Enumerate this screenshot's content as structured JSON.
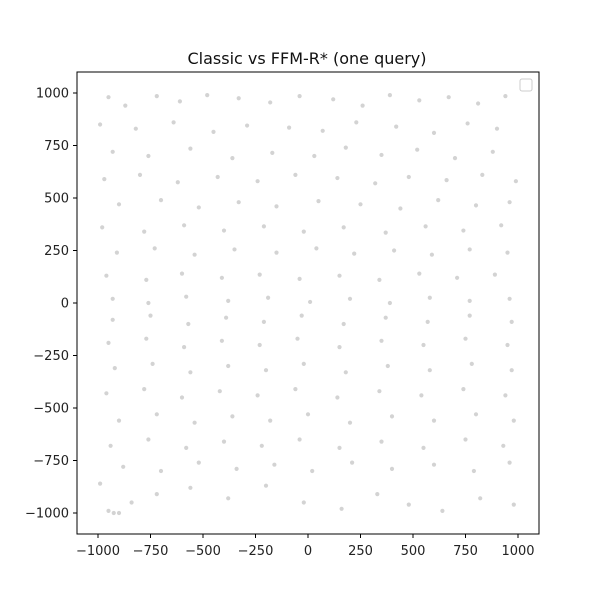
{
  "chart_data": {
    "type": "scatter",
    "title": "Classic vs FFM-R* (one query)",
    "xlabel": "",
    "ylabel": "",
    "xlim": [
      -1100,
      1100
    ],
    "ylim": [
      -1100,
      1100
    ],
    "xticks": [
      -1000,
      -750,
      -500,
      -250,
      0,
      250,
      500,
      750,
      1000
    ],
    "yticks": [
      -1000,
      -750,
      -500,
      -250,
      0,
      250,
      500,
      750,
      1000
    ],
    "xtick_labels": [
      "−1000",
      "−750",
      "−500",
      "−250",
      "0",
      "250",
      "500",
      "750",
      "1000"
    ],
    "ytick_labels": [
      "−1000",
      "−750",
      "−500",
      "−250",
      "0",
      "250",
      "500",
      "750",
      "1000"
    ],
    "grid": false,
    "legend": {
      "placement": "top-right",
      "entries": []
    },
    "point_color": "#d3d3d3",
    "series": [
      {
        "name": "",
        "points": [
          [
            -950,
            980
          ],
          [
            -870,
            940
          ],
          [
            -720,
            985
          ],
          [
            -610,
            960
          ],
          [
            -480,
            990
          ],
          [
            -330,
            975
          ],
          [
            -180,
            955
          ],
          [
            -40,
            985
          ],
          [
            120,
            970
          ],
          [
            260,
            940
          ],
          [
            390,
            990
          ],
          [
            530,
            965
          ],
          [
            670,
            980
          ],
          [
            810,
            950
          ],
          [
            940,
            985
          ],
          [
            -990,
            850
          ],
          [
            -820,
            830
          ],
          [
            -640,
            860
          ],
          [
            -450,
            815
          ],
          [
            -290,
            845
          ],
          [
            -90,
            835
          ],
          [
            70,
            820
          ],
          [
            230,
            860
          ],
          [
            420,
            840
          ],
          [
            600,
            810
          ],
          [
            760,
            855
          ],
          [
            900,
            830
          ],
          [
            -930,
            720
          ],
          [
            -760,
            700
          ],
          [
            -560,
            735
          ],
          [
            -360,
            690
          ],
          [
            -170,
            715
          ],
          [
            30,
            700
          ],
          [
            180,
            740
          ],
          [
            350,
            705
          ],
          [
            520,
            730
          ],
          [
            700,
            690
          ],
          [
            880,
            720
          ],
          [
            -970,
            590
          ],
          [
            -800,
            610
          ],
          [
            -620,
            575
          ],
          [
            -430,
            600
          ],
          [
            -240,
            580
          ],
          [
            -60,
            610
          ],
          [
            140,
            595
          ],
          [
            320,
            570
          ],
          [
            480,
            600
          ],
          [
            660,
            585
          ],
          [
            830,
            610
          ],
          [
            990,
            580
          ],
          [
            -900,
            470
          ],
          [
            -700,
            490
          ],
          [
            -520,
            455
          ],
          [
            -330,
            480
          ],
          [
            -150,
            460
          ],
          [
            50,
            485
          ],
          [
            250,
            470
          ],
          [
            440,
            450
          ],
          [
            620,
            490
          ],
          [
            800,
            465
          ],
          [
            960,
            480
          ],
          [
            -980,
            360
          ],
          [
            -780,
            340
          ],
          [
            -590,
            370
          ],
          [
            -400,
            345
          ],
          [
            -210,
            365
          ],
          [
            -20,
            340
          ],
          [
            170,
            360
          ],
          [
            370,
            335
          ],
          [
            560,
            365
          ],
          [
            740,
            345
          ],
          [
            920,
            370
          ],
          [
            -910,
            240
          ],
          [
            -730,
            260
          ],
          [
            -540,
            230
          ],
          [
            -350,
            255
          ],
          [
            -150,
            240
          ],
          [
            40,
            260
          ],
          [
            220,
            235
          ],
          [
            410,
            250
          ],
          [
            590,
            230
          ],
          [
            770,
            255
          ],
          [
            950,
            240
          ],
          [
            -960,
            130
          ],
          [
            -770,
            110
          ],
          [
            -600,
            140
          ],
          [
            -410,
            120
          ],
          [
            -230,
            135
          ],
          [
            -40,
            115
          ],
          [
            150,
            130
          ],
          [
            340,
            110
          ],
          [
            530,
            140
          ],
          [
            710,
            120
          ],
          [
            890,
            135
          ],
          [
            -930,
            20
          ],
          [
            -760,
            0
          ],
          [
            -580,
            30
          ],
          [
            -380,
            10
          ],
          [
            -190,
            25
          ],
          [
            10,
            5
          ],
          [
            200,
            20
          ],
          [
            390,
            0
          ],
          [
            580,
            25
          ],
          [
            770,
            10
          ],
          [
            960,
            20
          ],
          [
            -990,
            -860
          ],
          [
            -950,
            -990
          ],
          [
            -925,
            -1000
          ],
          [
            -900,
            -1000
          ],
          [
            -840,
            -950
          ],
          [
            -720,
            -910
          ],
          [
            -560,
            -880
          ],
          [
            -380,
            -930
          ],
          [
            -200,
            -870
          ],
          [
            -20,
            -950
          ],
          [
            160,
            -980
          ],
          [
            330,
            -910
          ],
          [
            480,
            -960
          ],
          [
            640,
            -990
          ],
          [
            820,
            -930
          ],
          [
            980,
            -960
          ],
          [
            -880,
            -780
          ],
          [
            -700,
            -800
          ],
          [
            -520,
            -760
          ],
          [
            -340,
            -790
          ],
          [
            -160,
            -770
          ],
          [
            20,
            -800
          ],
          [
            210,
            -760
          ],
          [
            400,
            -790
          ],
          [
            600,
            -770
          ],
          [
            790,
            -800
          ],
          [
            960,
            -760
          ],
          [
            -940,
            -680
          ],
          [
            -760,
            -650
          ],
          [
            -580,
            -690
          ],
          [
            -400,
            -660
          ],
          [
            -220,
            -680
          ],
          [
            -40,
            -650
          ],
          [
            150,
            -690
          ],
          [
            350,
            -660
          ],
          [
            550,
            -690
          ],
          [
            750,
            -650
          ],
          [
            930,
            -680
          ],
          [
            -900,
            -560
          ],
          [
            -720,
            -530
          ],
          [
            -540,
            -570
          ],
          [
            -360,
            -540
          ],
          [
            -180,
            -560
          ],
          [
            0,
            -530
          ],
          [
            200,
            -570
          ],
          [
            400,
            -540
          ],
          [
            600,
            -560
          ],
          [
            800,
            -530
          ],
          [
            980,
            -560
          ],
          [
            -960,
            -430
          ],
          [
            -780,
            -410
          ],
          [
            -600,
            -450
          ],
          [
            -420,
            -420
          ],
          [
            -240,
            -440
          ],
          [
            -60,
            -410
          ],
          [
            140,
            -450
          ],
          [
            340,
            -420
          ],
          [
            540,
            -440
          ],
          [
            740,
            -410
          ],
          [
            940,
            -440
          ],
          [
            -920,
            -310
          ],
          [
            -740,
            -290
          ],
          [
            -560,
            -330
          ],
          [
            -380,
            -300
          ],
          [
            -200,
            -320
          ],
          [
            -20,
            -290
          ],
          [
            180,
            -330
          ],
          [
            380,
            -300
          ],
          [
            580,
            -320
          ],
          [
            780,
            -290
          ],
          [
            970,
            -320
          ],
          [
            -950,
            -190
          ],
          [
            -770,
            -170
          ],
          [
            -590,
            -210
          ],
          [
            -410,
            -180
          ],
          [
            -230,
            -200
          ],
          [
            -50,
            -170
          ],
          [
            150,
            -210
          ],
          [
            350,
            -180
          ],
          [
            550,
            -200
          ],
          [
            750,
            -170
          ],
          [
            950,
            -200
          ],
          [
            -930,
            -80
          ],
          [
            -750,
            -60
          ],
          [
            -570,
            -100
          ],
          [
            -390,
            -70
          ],
          [
            -210,
            -90
          ],
          [
            -30,
            -60
          ],
          [
            170,
            -100
          ],
          [
            370,
            -70
          ],
          [
            570,
            -90
          ],
          [
            770,
            -60
          ],
          [
            970,
            -90
          ]
        ]
      }
    ]
  }
}
